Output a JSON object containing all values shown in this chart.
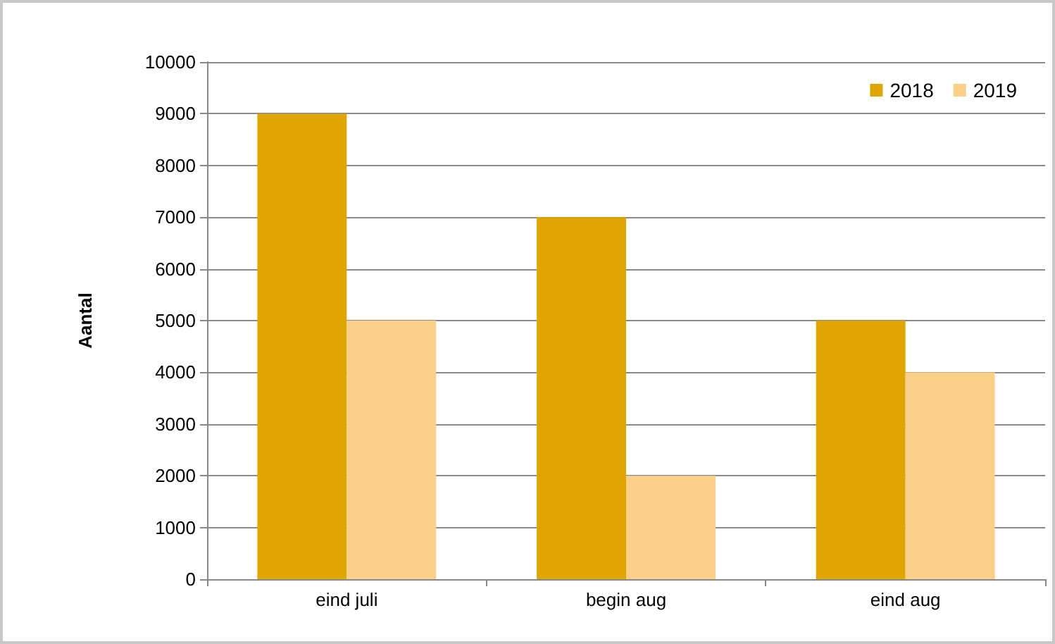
{
  "chart_data": {
    "type": "bar",
    "ylabel": "Aantal",
    "categories": [
      "eind juli",
      "begin aug",
      "eind aug"
    ],
    "series": [
      {
        "name": "2018",
        "color": "#dfa602",
        "values": [
          9000,
          7000,
          5000
        ]
      },
      {
        "name": "2019",
        "color": "#fccf88",
        "values": [
          5000,
          2000,
          4000
        ]
      }
    ],
    "ylim": [
      0,
      10000
    ],
    "yticks": [
      0,
      1000,
      2000,
      3000,
      4000,
      5000,
      6000,
      7000,
      8000,
      9000,
      10000
    ],
    "grid": "y",
    "legend": "top right"
  }
}
